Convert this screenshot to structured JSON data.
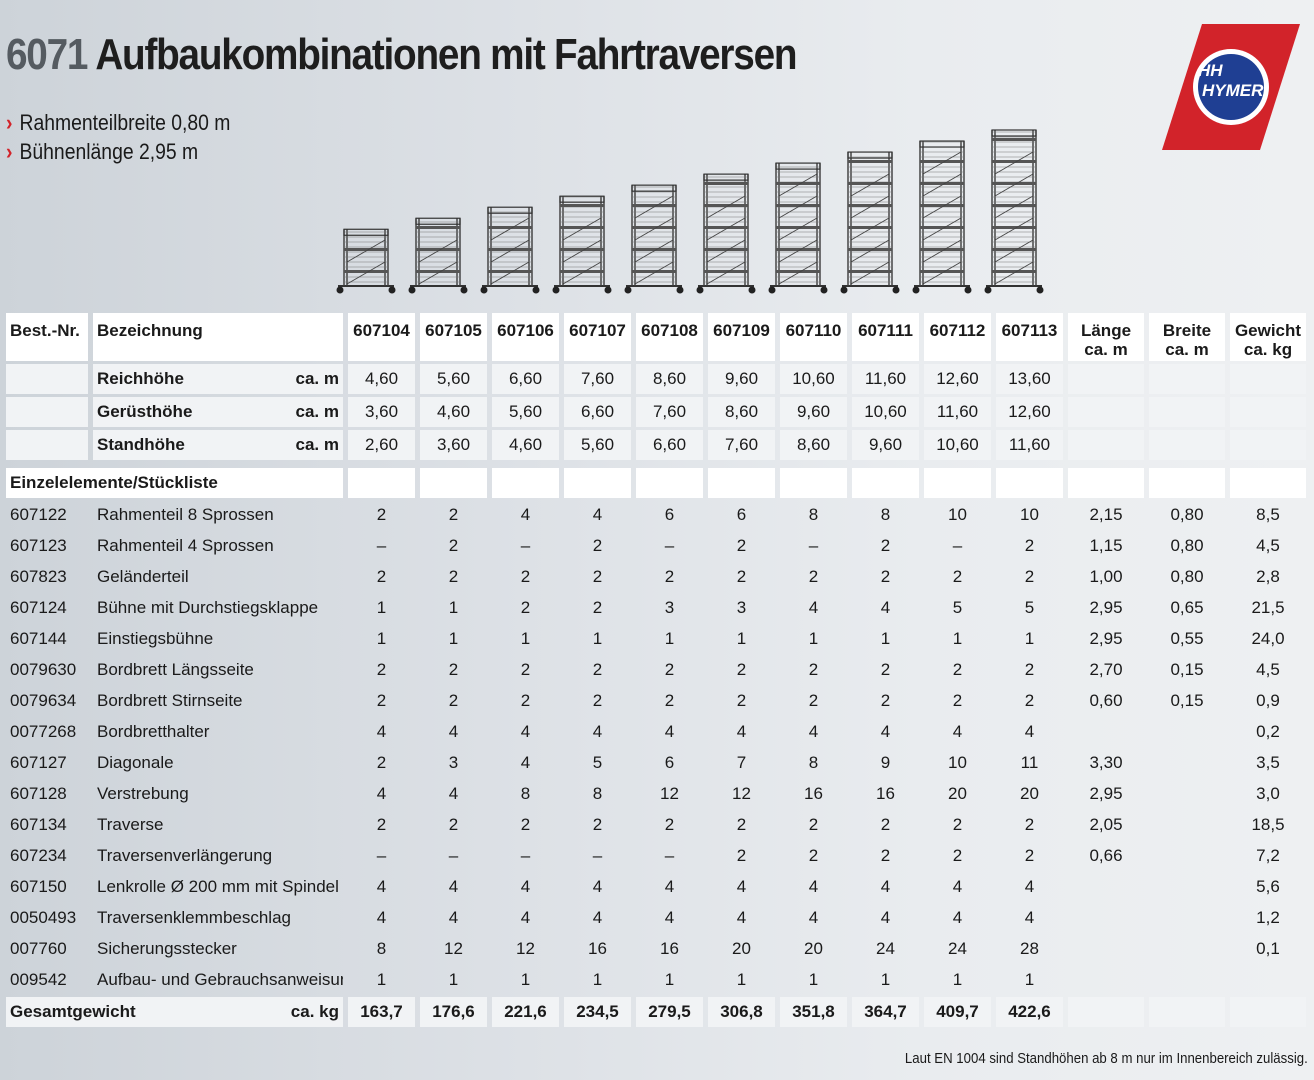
{
  "header": {
    "model_number": "6071",
    "title": "Aufbaukombinationen mit Fahrtraversen",
    "bullets": [
      "Rahmenteilbreite 0,80 m",
      "Bühnenlänge 2,95 m"
    ],
    "logo_text": "HYMER",
    "logo_initials": "HH"
  },
  "scaffold_heights": [
    4.6,
    5.6,
    6.6,
    7.6,
    8.6,
    9.6,
    10.6,
    11.6,
    12.6,
    13.6
  ],
  "table": {
    "col_bestnr": "Best.-Nr.",
    "col_bezeichnung": "Bezeichnung",
    "models": [
      "607104",
      "607105",
      "607106",
      "607107",
      "607108",
      "607109",
      "607110",
      "607111",
      "607112",
      "607113"
    ],
    "col_laenge": [
      "Länge",
      "ca. m"
    ],
    "col_breite": [
      "Breite",
      "ca. m"
    ],
    "col_gewicht": [
      "Gewicht",
      "ca. kg"
    ],
    "heights": [
      {
        "label": "Reichhöhe",
        "unit": "ca. m",
        "values": [
          "4,60",
          "5,60",
          "6,60",
          "7,60",
          "8,60",
          "9,60",
          "10,60",
          "11,60",
          "12,60",
          "13,60"
        ]
      },
      {
        "label": "Gerüsthöhe",
        "unit": "ca. m",
        "values": [
          "3,60",
          "4,60",
          "5,60",
          "6,60",
          "7,60",
          "8,60",
          "9,60",
          "10,60",
          "11,60",
          "12,60"
        ]
      },
      {
        "label": "Standhöhe",
        "unit": "ca. m",
        "values": [
          "2,60",
          "3,60",
          "4,60",
          "5,60",
          "6,60",
          "7,60",
          "8,60",
          "9,60",
          "10,60",
          "11,60"
        ]
      }
    ],
    "section_title": "Einzelelemente/Stückliste",
    "items": [
      {
        "nr": "607122",
        "name": "Rahmenteil 8 Sprossen",
        "q": [
          "2",
          "2",
          "4",
          "4",
          "6",
          "6",
          "8",
          "8",
          "10",
          "10"
        ],
        "l": "2,15",
        "b": "0,80",
        "g": "8,5"
      },
      {
        "nr": "607123",
        "name": "Rahmenteil 4 Sprossen",
        "q": [
          "–",
          "2",
          "–",
          "2",
          "–",
          "2",
          "–",
          "2",
          "–",
          "2"
        ],
        "l": "1,15",
        "b": "0,80",
        "g": "4,5"
      },
      {
        "nr": "607823",
        "name": "Geländerteil",
        "q": [
          "2",
          "2",
          "2",
          "2",
          "2",
          "2",
          "2",
          "2",
          "2",
          "2"
        ],
        "l": "1,00",
        "b": "0,80",
        "g": "2,8"
      },
      {
        "nr": "607124",
        "name": "Bühne mit Durchstiegsklappe",
        "q": [
          "1",
          "1",
          "2",
          "2",
          "3",
          "3",
          "4",
          "4",
          "5",
          "5"
        ],
        "l": "2,95",
        "b": "0,65",
        "g": "21,5"
      },
      {
        "nr": "607144",
        "name": "Einstiegsbühne",
        "q": [
          "1",
          "1",
          "1",
          "1",
          "1",
          "1",
          "1",
          "1",
          "1",
          "1"
        ],
        "l": "2,95",
        "b": "0,55",
        "g": "24,0"
      },
      {
        "nr": "0079630",
        "name": "Bordbrett Längsseite",
        "q": [
          "2",
          "2",
          "2",
          "2",
          "2",
          "2",
          "2",
          "2",
          "2",
          "2"
        ],
        "l": "2,70",
        "b": "0,15",
        "g": "4,5"
      },
      {
        "nr": "0079634",
        "name": "Bordbrett Stirnseite",
        "q": [
          "2",
          "2",
          "2",
          "2",
          "2",
          "2",
          "2",
          "2",
          "2",
          "2"
        ],
        "l": "0,60",
        "b": "0,15",
        "g": "0,9"
      },
      {
        "nr": "0077268",
        "name": "Bordbretthalter",
        "q": [
          "4",
          "4",
          "4",
          "4",
          "4",
          "4",
          "4",
          "4",
          "4",
          "4"
        ],
        "l": "",
        "b": "",
        "g": "0,2"
      },
      {
        "nr": "607127",
        "name": "Diagonale",
        "q": [
          "2",
          "3",
          "4",
          "5",
          "6",
          "7",
          "8",
          "9",
          "10",
          "11"
        ],
        "l": "3,30",
        "b": "",
        "g": "3,5"
      },
      {
        "nr": "607128",
        "name": "Verstrebung",
        "q": [
          "4",
          "4",
          "8",
          "8",
          "12",
          "12",
          "16",
          "16",
          "20",
          "20"
        ],
        "l": "2,95",
        "b": "",
        "g": "3,0"
      },
      {
        "nr": "607134",
        "name": "Traverse",
        "q": [
          "2",
          "2",
          "2",
          "2",
          "2",
          "2",
          "2",
          "2",
          "2",
          "2"
        ],
        "l": "2,05",
        "b": "",
        "g": "18,5"
      },
      {
        "nr": "607234",
        "name": "Traversenverlängerung",
        "q": [
          "–",
          "–",
          "–",
          "–",
          "–",
          "2",
          "2",
          "2",
          "2",
          "2"
        ],
        "l": "0,66",
        "b": "",
        "g": "7,2"
      },
      {
        "nr": "607150",
        "name": "Lenkrolle Ø 200 mm mit Spindel",
        "q": [
          "4",
          "4",
          "4",
          "4",
          "4",
          "4",
          "4",
          "4",
          "4",
          "4"
        ],
        "l": "",
        "b": "",
        "g": "5,6"
      },
      {
        "nr": "0050493",
        "name": "Traversenklemmbeschlag",
        "q": [
          "4",
          "4",
          "4",
          "4",
          "4",
          "4",
          "4",
          "4",
          "4",
          "4"
        ],
        "l": "",
        "b": "",
        "g": "1,2"
      },
      {
        "nr": "007760",
        "name": "Sicherungsstecker",
        "q": [
          "8",
          "12",
          "12",
          "16",
          "16",
          "20",
          "20",
          "24",
          "24",
          "28"
        ],
        "l": "",
        "b": "",
        "g": "0,1"
      },
      {
        "nr": "009542",
        "name": "Aufbau- und Gebrauchsanweisung",
        "q": [
          "1",
          "1",
          "1",
          "1",
          "1",
          "1",
          "1",
          "1",
          "1",
          "1"
        ],
        "l": "",
        "b": "",
        "g": ""
      }
    ],
    "total": {
      "label": "Gesamtgewicht",
      "unit": "ca. kg",
      "values": [
        "163,7",
        "176,6",
        "221,6",
        "234,5",
        "279,5",
        "306,8",
        "351,8",
        "364,7",
        "409,7",
        "422,6"
      ]
    }
  },
  "footnote": "Laut EN 1004 sind Standhöhen ab 8 m nur im Innenbereich zulässig.",
  "colors": {
    "accent_red": "#d2232a",
    "logo_blue": "#1f3f93"
  }
}
